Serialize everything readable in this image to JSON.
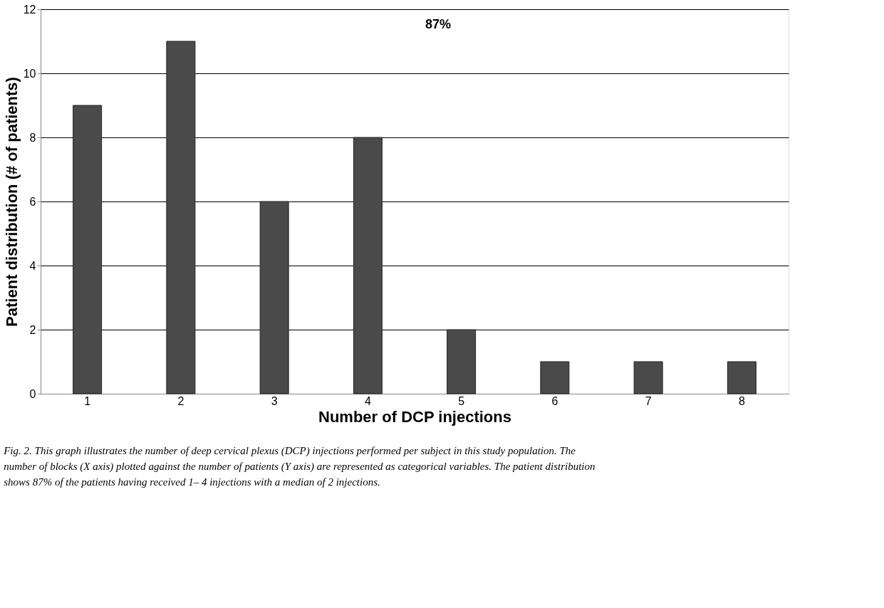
{
  "chart_data": {
    "type": "bar",
    "xlabel": "Number of DCP injections",
    "ylabel": "Patient distribution (# of patients)",
    "categories": [
      "1",
      "2",
      "3",
      "4",
      "5",
      "6",
      "7",
      "8"
    ],
    "values": [
      9,
      11,
      6,
      8,
      2,
      1,
      1,
      1
    ],
    "color": "#4a4a4a",
    "ylim": [
      0,
      12
    ],
    "yticks": [
      0,
      2,
      4,
      6,
      8,
      10,
      12
    ],
    "grid": "y",
    "annotations": [
      "87%",
      "Fig. 2. This graph illustrates the number of deep cervical plexus (DCP) injections performed per subject in this study population. The number of blocks (X axis) plotted against the number of patients (Y axis) are represented as categorical variables. The patient distribution shows 87% of the patients having received 1– 4 injections with a median of 2 injections."
    ]
  }
}
